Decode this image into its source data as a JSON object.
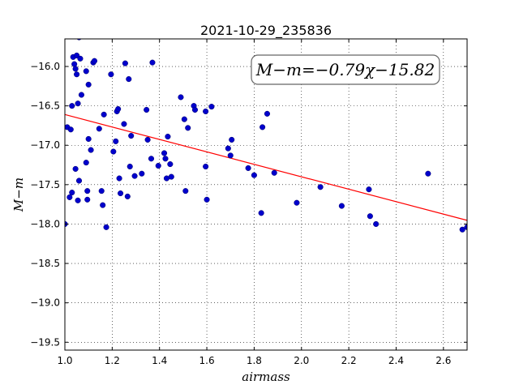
{
  "chart_data": {
    "type": "scatter",
    "title": "2021-10-29_235836",
    "xlabel": "airmass",
    "ylabel": "M−m",
    "xlim": [
      1.0,
      2.7
    ],
    "ylim": [
      -19.6,
      -15.65
    ],
    "y_inverted": false,
    "grid": true,
    "grid_style": "dotted",
    "xticks": [
      1.0,
      1.2,
      1.4,
      1.6,
      1.8,
      2.0,
      2.2,
      2.4,
      2.6
    ],
    "xtick_labels": [
      "1.0",
      "1.2",
      "1.4",
      "1.6",
      "1.8",
      "2.0",
      "2.2",
      "2.4",
      "2.6"
    ],
    "yticks": [
      -16.0,
      -16.5,
      -17.0,
      -17.5,
      -18.0,
      -18.5,
      -19.0,
      -19.5
    ],
    "ytick_labels": [
      "−16.0",
      "−16.5",
      "−17.0",
      "−17.5",
      "−18.0",
      "−18.5",
      "−19.0",
      "−19.5"
    ],
    "annotation": "M−m=−0.79χ−15.82",
    "annotation_placement": "top-right",
    "fit": {
      "slope": -0.79,
      "intercept": -15.82,
      "color": "#ff0000"
    },
    "point_color": "#0000cc",
    "points": [
      [
        1.0,
        -18.0
      ],
      [
        1.01,
        -16.77
      ],
      [
        1.02,
        -17.66
      ],
      [
        1.025,
        -16.8
      ],
      [
        1.03,
        -17.6
      ],
      [
        1.03,
        -16.5
      ],
      [
        1.035,
        -15.88
      ],
      [
        1.04,
        -15.97
      ],
      [
        1.045,
        -16.03
      ],
      [
        1.05,
        -15.86
      ],
      [
        1.05,
        -16.1
      ],
      [
        1.045,
        -17.3
      ],
      [
        1.055,
        -17.7
      ],
      [
        1.055,
        -16.47
      ],
      [
        1.06,
        -17.45
      ],
      [
        1.06,
        -15.63
      ],
      [
        1.065,
        -15.9
      ],
      [
        1.07,
        -16.36
      ],
      [
        1.09,
        -16.06
      ],
      [
        1.09,
        -17.22
      ],
      [
        1.095,
        -17.58
      ],
      [
        1.095,
        -17.69
      ],
      [
        1.1,
        -16.23
      ],
      [
        1.1,
        -16.92
      ],
      [
        1.11,
        -17.06
      ],
      [
        1.12,
        -15.95
      ],
      [
        1.125,
        -15.93
      ],
      [
        1.145,
        -16.79
      ],
      [
        1.155,
        -17.58
      ],
      [
        1.16,
        -17.76
      ],
      [
        1.165,
        -16.61
      ],
      [
        1.175,
        -18.04
      ],
      [
        1.195,
        -16.1
      ],
      [
        1.205,
        -17.08
      ],
      [
        1.215,
        -16.95
      ],
      [
        1.22,
        -16.57
      ],
      [
        1.225,
        -16.54
      ],
      [
        1.23,
        -17.42
      ],
      [
        1.235,
        -17.61
      ],
      [
        1.25,
        -16.73
      ],
      [
        1.255,
        -15.96
      ],
      [
        1.265,
        -17.65
      ],
      [
        1.27,
        -16.16
      ],
      [
        1.275,
        -17.27
      ],
      [
        1.28,
        -16.88
      ],
      [
        1.295,
        -17.39
      ],
      [
        1.325,
        -17.36
      ],
      [
        1.345,
        -16.55
      ],
      [
        1.35,
        -16.93
      ],
      [
        1.365,
        -17.17
      ],
      [
        1.37,
        -15.95
      ],
      [
        1.395,
        -17.26
      ],
      [
        1.42,
        -17.1
      ],
      [
        1.425,
        -17.17
      ],
      [
        1.43,
        -17.42
      ],
      [
        1.435,
        -16.89
      ],
      [
        1.445,
        -17.24
      ],
      [
        1.45,
        -17.4
      ],
      [
        1.49,
        -16.39
      ],
      [
        1.505,
        -16.67
      ],
      [
        1.51,
        -17.58
      ],
      [
        1.52,
        -16.78
      ],
      [
        1.545,
        -16.5
      ],
      [
        1.55,
        -16.55
      ],
      [
        1.595,
        -17.27
      ],
      [
        1.595,
        -16.57
      ],
      [
        1.6,
        -17.69
      ],
      [
        1.62,
        -16.51
      ],
      [
        1.69,
        -17.04
      ],
      [
        1.705,
        -16.93
      ],
      [
        1.7,
        -17.13
      ],
      [
        1.775,
        -17.29
      ],
      [
        1.8,
        -17.38
      ],
      [
        1.83,
        -17.86
      ],
      [
        1.835,
        -16.77
      ],
      [
        1.855,
        -16.6
      ],
      [
        1.885,
        -17.35
      ],
      [
        1.98,
        -17.73
      ],
      [
        2.08,
        -17.53
      ],
      [
        2.17,
        -17.77
      ],
      [
        2.285,
        -17.56
      ],
      [
        2.29,
        -17.9
      ],
      [
        2.315,
        -18.0
      ],
      [
        2.535,
        -17.36
      ],
      [
        2.68,
        -18.07
      ],
      [
        2.7,
        -18.04
      ]
    ]
  }
}
